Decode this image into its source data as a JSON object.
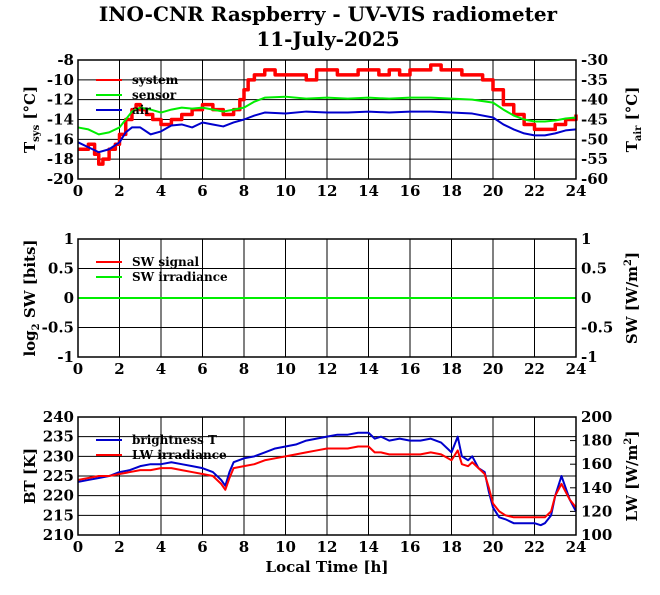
{
  "title_line1": "INO-CNR Raspberry - UV-VIS radiometer",
  "title_line2": "11-July-2025",
  "colors": {
    "red": "#ff0000",
    "green": "#00ee00",
    "blue": "#0000cc"
  },
  "chart_data": [
    {
      "id": "temperature",
      "type": "line",
      "xlim": [
        0,
        24
      ],
      "xticks": [
        "0",
        "2",
        "4",
        "6",
        "8",
        "10",
        "12",
        "14",
        "16",
        "18",
        "20",
        "22",
        "24"
      ],
      "ylim_left": [
        -20,
        -8
      ],
      "yticks_left": [
        "-8",
        "-10",
        "-12",
        "-14",
        "-16",
        "-18",
        "-20"
      ],
      "ylim_right": [
        -60,
        -30
      ],
      "yticks_right": [
        "-30",
        "-35",
        "-40",
        "-45",
        "-50",
        "-55",
        "-60"
      ],
      "ylabel_left": {
        "main": "T",
        "sub": "sys",
        "unit": " [°C]"
      },
      "ylabel_right": {
        "main": "T",
        "sub": "air",
        "unit": " [°C]"
      },
      "series": [
        {
          "name": "system",
          "color": "red",
          "axis": "left",
          "style": "step",
          "x": [
            0,
            0.5,
            0.8,
            1.0,
            1.2,
            1.5,
            1.8,
            2.0,
            2.3,
            2.6,
            2.8,
            3.0,
            3.3,
            3.6,
            4.0,
            4.5,
            5.0,
            5.5,
            6.0,
            6.5,
            7.0,
            7.5,
            7.8,
            8.0,
            8.2,
            8.5,
            9.0,
            9.5,
            10,
            10.5,
            11,
            11.5,
            12,
            12.5,
            13,
            13.5,
            14,
            14.5,
            15,
            15.5,
            16,
            16.5,
            17,
            17.5,
            18,
            18.5,
            19,
            19.5,
            20,
            20.5,
            21,
            21.5,
            22,
            22.5,
            23,
            23.5,
            24
          ],
          "y": [
            -17,
            -16.5,
            -17.5,
            -18.5,
            -18,
            -17,
            -16.5,
            -15.5,
            -14,
            -13,
            -12.5,
            -13,
            -13.5,
            -14,
            -14.5,
            -14,
            -13.5,
            -13,
            -12.5,
            -13,
            -13.5,
            -13,
            -12,
            -11,
            -10,
            -9.5,
            -9,
            -9.5,
            -9.5,
            -9.5,
            -10,
            -9,
            -9,
            -9.5,
            -9.5,
            -9,
            -9,
            -9.5,
            -9,
            -9.5,
            -9,
            -9,
            -8.5,
            -9,
            -9,
            -9.5,
            -9.5,
            -10,
            -11,
            -12.5,
            -13.5,
            -14.5,
            -15,
            -15,
            -14.5,
            -14,
            -13.5
          ]
        },
        {
          "name": "sensor",
          "color": "green",
          "axis": "left",
          "x": [
            0,
            0.5,
            1.0,
            1.5,
            2.0,
            2.3,
            2.6,
            3.0,
            3.5,
            4.0,
            4.5,
            5.0,
            5.5,
            6.0,
            6.5,
            7.0,
            7.5,
            8.0,
            8.5,
            9.0,
            10,
            11,
            12,
            13,
            14,
            15,
            16,
            17,
            18,
            19,
            20,
            20.5,
            21,
            21.5,
            22,
            22.5,
            23,
            23.5,
            24
          ],
          "y": [
            -14.8,
            -15,
            -15.5,
            -15.3,
            -14.8,
            -14,
            -13.2,
            -12.8,
            -13,
            -13.3,
            -13,
            -12.8,
            -12.9,
            -12.8,
            -13,
            -13.2,
            -13,
            -12.8,
            -12.2,
            -11.8,
            -11.7,
            -11.9,
            -11.8,
            -11.9,
            -11.8,
            -11.9,
            -11.8,
            -11.8,
            -11.9,
            -12,
            -12.3,
            -13,
            -13.6,
            -14,
            -14.2,
            -14.2,
            -14.1,
            -13.9,
            -13.8
          ]
        },
        {
          "name": "air",
          "color": "blue",
          "axis": "left",
          "x": [
            0,
            0.5,
            1.0,
            1.5,
            2.0,
            2.3,
            2.6,
            3.0,
            3.5,
            4.0,
            4.5,
            5.0,
            5.5,
            6.0,
            6.5,
            7.0,
            7.5,
            8.0,
            8.5,
            9.0,
            10,
            11,
            12,
            13,
            14,
            15,
            16,
            17,
            18,
            19,
            20,
            20.5,
            21,
            21.5,
            22,
            22.5,
            23,
            23.5,
            24
          ],
          "y": [
            -16.3,
            -16.8,
            -17.3,
            -17,
            -16.3,
            -15.3,
            -14.8,
            -14.8,
            -15.5,
            -15.2,
            -14.6,
            -14.5,
            -14.8,
            -14.3,
            -14.5,
            -14.7,
            -14.3,
            -14,
            -13.6,
            -13.3,
            -13.4,
            -13.2,
            -13.3,
            -13.3,
            -13.2,
            -13.3,
            -13.2,
            -13.2,
            -13.3,
            -13.4,
            -13.8,
            -14.5,
            -15,
            -15.4,
            -15.6,
            -15.6,
            -15.4,
            -15.1,
            -15
          ]
        }
      ]
    },
    {
      "id": "shortwave",
      "type": "line",
      "xlim": [
        0,
        24
      ],
      "xticks": [
        "0",
        "2",
        "4",
        "6",
        "8",
        "10",
        "12",
        "14",
        "16",
        "18",
        "20",
        "22",
        "24"
      ],
      "ylim_left": [
        -1,
        1
      ],
      "yticks_left": [
        "1",
        "0.5",
        "0",
        "-0.5",
        "-1"
      ],
      "ylim_right": [
        -1,
        1
      ],
      "yticks_right": [
        "1",
        "0.5",
        "0",
        "-0.5",
        "-1"
      ],
      "ylabel_left": {
        "pre": "log",
        "sub": "2",
        "post": " SW [bits]"
      },
      "ylabel_right": {
        "pre": "SW [W/m",
        "sup": "2",
        "post": "]"
      },
      "series": [
        {
          "name": "SW signal",
          "color": "red",
          "axis": "left",
          "x": [
            0,
            24
          ],
          "y": [
            0,
            0
          ]
        },
        {
          "name": "SW irradiance",
          "color": "green",
          "axis": "left",
          "x": [
            0,
            24
          ],
          "y": [
            0,
            0
          ]
        }
      ]
    },
    {
      "id": "longwave",
      "type": "line",
      "xlim": [
        0,
        24
      ],
      "xticks": [
        "0",
        "2",
        "4",
        "6",
        "8",
        "10",
        "12",
        "14",
        "16",
        "18",
        "20",
        "22",
        "24"
      ],
      "xlabel": "Local Time [h]",
      "ylim_left": [
        210,
        240
      ],
      "yticks_left": [
        "240",
        "235",
        "230",
        "225",
        "220",
        "215",
        "210"
      ],
      "ylim_right": [
        100,
        200
      ],
      "yticks_right": [
        "200",
        "180",
        "160",
        "140",
        "120",
        "100"
      ],
      "ylabel_left": {
        "pre": "BT [K]"
      },
      "ylabel_right": {
        "pre": "LW [W/m",
        "sup": "2",
        "post": "]"
      },
      "series": [
        {
          "name": "brightness T",
          "color": "blue",
          "axis": "left",
          "x": [
            0,
            0.5,
            1.0,
            1.5,
            2.0,
            2.5,
            3.0,
            3.5,
            4.0,
            4.5,
            5.0,
            5.5,
            6.0,
            6.5,
            6.9,
            7.1,
            7.3,
            7.5,
            8.0,
            8.5,
            9.0,
            9.5,
            10,
            10.5,
            11,
            11.5,
            12,
            12.5,
            13,
            13.5,
            14,
            14.3,
            14.6,
            15,
            15.5,
            16,
            16.5,
            17,
            17.5,
            18,
            18.3,
            18.5,
            18.8,
            19,
            19.3,
            19.6,
            19.8,
            20,
            20.3,
            20.6,
            21,
            21.5,
            22,
            22.3,
            22.5,
            22.8,
            23,
            23.3,
            23.5,
            23.7,
            24
          ],
          "y": [
            223.5,
            224,
            224.5,
            225,
            226,
            226.5,
            227.5,
            228,
            228,
            228.5,
            228,
            227.5,
            227,
            226,
            224,
            222.5,
            226,
            228.5,
            229.5,
            230,
            231,
            232,
            232.5,
            233,
            234,
            234.5,
            235,
            235.5,
            235.5,
            236,
            236,
            234.5,
            235,
            234,
            234.5,
            234,
            234,
            234.5,
            233.5,
            231,
            235,
            230,
            229,
            230,
            227,
            226,
            221,
            217,
            214.5,
            214,
            213,
            213,
            213,
            212.5,
            213,
            215,
            220,
            225,
            222,
            219,
            216
          ]
        },
        {
          "name": "LW irradiance",
          "color": "red",
          "axis": "left",
          "x": [
            0,
            0.5,
            1.0,
            1.5,
            2.0,
            2.5,
            3.0,
            3.5,
            4.0,
            4.5,
            5.0,
            5.5,
            6.0,
            6.5,
            6.9,
            7.1,
            7.3,
            7.5,
            8.0,
            8.5,
            9.0,
            9.5,
            10,
            10.5,
            11,
            11.5,
            12,
            12.5,
            13,
            13.5,
            14,
            14.3,
            14.6,
            15,
            15.5,
            16,
            16.5,
            17,
            17.5,
            18,
            18.3,
            18.5,
            18.8,
            19,
            19.3,
            19.6,
            19.8,
            20,
            20.3,
            20.6,
            21,
            21.5,
            22,
            22.3,
            22.5,
            22.8,
            23,
            23.3,
            23.5,
            23.7,
            24
          ],
          "y": [
            224,
            224.5,
            225,
            225,
            225.5,
            226,
            226.5,
            226.5,
            227,
            227,
            226.5,
            226,
            225.5,
            225,
            223,
            221.5,
            224.5,
            227,
            227.5,
            228,
            229,
            229.5,
            230,
            230.5,
            231,
            231.5,
            232,
            232,
            232,
            232.5,
            232.5,
            231,
            231,
            230.5,
            230.5,
            230.5,
            230.5,
            231,
            230.5,
            229,
            231.5,
            228,
            227.5,
            228.5,
            227,
            225.5,
            222,
            218,
            216,
            215,
            214.5,
            214.5,
            214.5,
            214.5,
            214.5,
            216,
            220,
            223,
            221,
            219,
            217
          ]
        }
      ]
    }
  ]
}
